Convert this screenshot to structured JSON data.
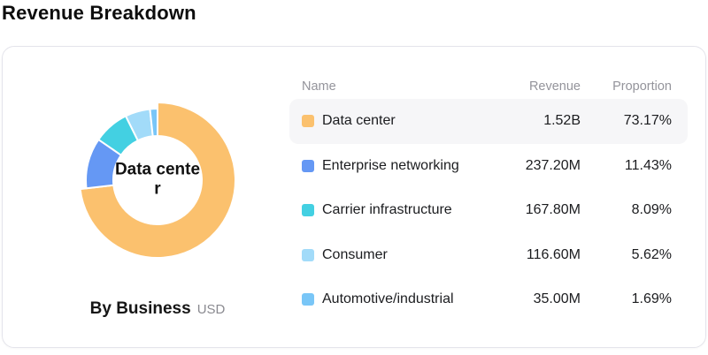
{
  "page": {
    "title": "Revenue Breakdown"
  },
  "card": {
    "caption": {
      "title": "By Business",
      "unit": "USD"
    },
    "table": {
      "headers": {
        "name": "Name",
        "revenue": "Revenue",
        "proportion": "Proportion"
      },
      "rows": [
        {
          "name": "Data center",
          "revenue": "1.52B",
          "proportion": "73.17%",
          "color": "#FBC16E",
          "highlighted": true
        },
        {
          "name": "Enterprise networking",
          "revenue": "237.20M",
          "proportion": "11.43%",
          "color": "#6598F4",
          "highlighted": false
        },
        {
          "name": "Carrier infrastructure",
          "revenue": "167.80M",
          "proportion": "8.09%",
          "color": "#43D0E2",
          "highlighted": false
        },
        {
          "name": "Consumer",
          "revenue": "116.60M",
          "proportion": "5.62%",
          "color": "#A2DBF9",
          "highlighted": false
        },
        {
          "name": "Automotive/industrial",
          "revenue": "35.00M",
          "proportion": "1.69%",
          "color": "#79C6F7",
          "highlighted": false
        }
      ]
    }
  },
  "chart_data": {
    "type": "pie",
    "donut": true,
    "title": "By Business",
    "unit": "USD",
    "center_label": "Data center",
    "selected_index": 0,
    "start_angle_deg": 0,
    "clockwise": true,
    "categories": [
      "Data center",
      "Enterprise networking",
      "Carrier infrastructure",
      "Consumer",
      "Automotive/industrial"
    ],
    "values": [
      "1.52B",
      "237.20M",
      "167.80M",
      "116.60M",
      "35.00M"
    ],
    "proportions_pct": [
      73.17,
      11.43,
      8.09,
      5.62,
      1.69
    ],
    "colors": [
      "#FBC16E",
      "#6598F4",
      "#43D0E2",
      "#A2DBF9",
      "#79C6F7"
    ],
    "geometry": {
      "inner_radius": 50,
      "outer_radius": 81,
      "selected_outer_radius": 88
    }
  }
}
